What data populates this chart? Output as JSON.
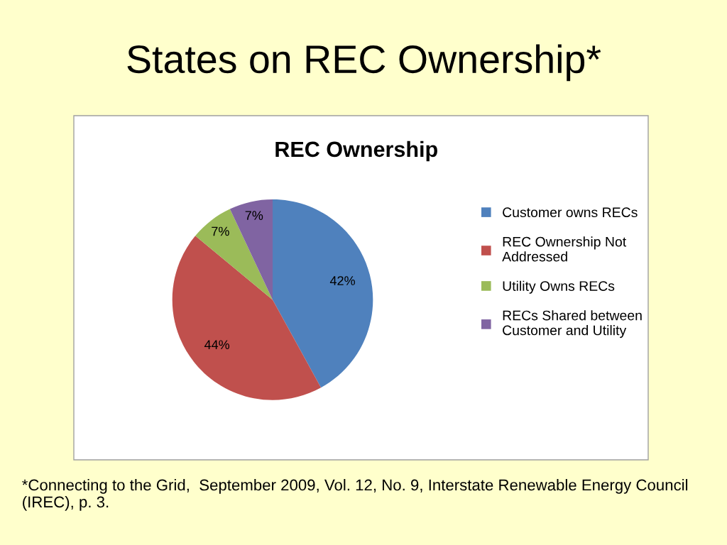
{
  "chart_data": {
    "type": "pie",
    "title": "States on REC Ownership*",
    "subtitle": "REC Ownership",
    "categories": [
      "Customer owns RECs",
      "REC Ownership Not Addressed",
      "Utility Owns RECs",
      "RECs Shared between Customer and Utility"
    ],
    "values": [
      42,
      44,
      7,
      7
    ],
    "colors": [
      "#4f81bd",
      "#c0504d",
      "#9bbb59",
      "#8064a2"
    ],
    "value_labels": [
      "42%",
      "44%",
      "7%",
      "7%"
    ],
    "legend": "right",
    "annotations": [
      "*Connecting to the Grid,  September 2009, Vol. 12, No. 9, Interstate Renewable Energy Council (IREC), p. 3."
    ]
  }
}
